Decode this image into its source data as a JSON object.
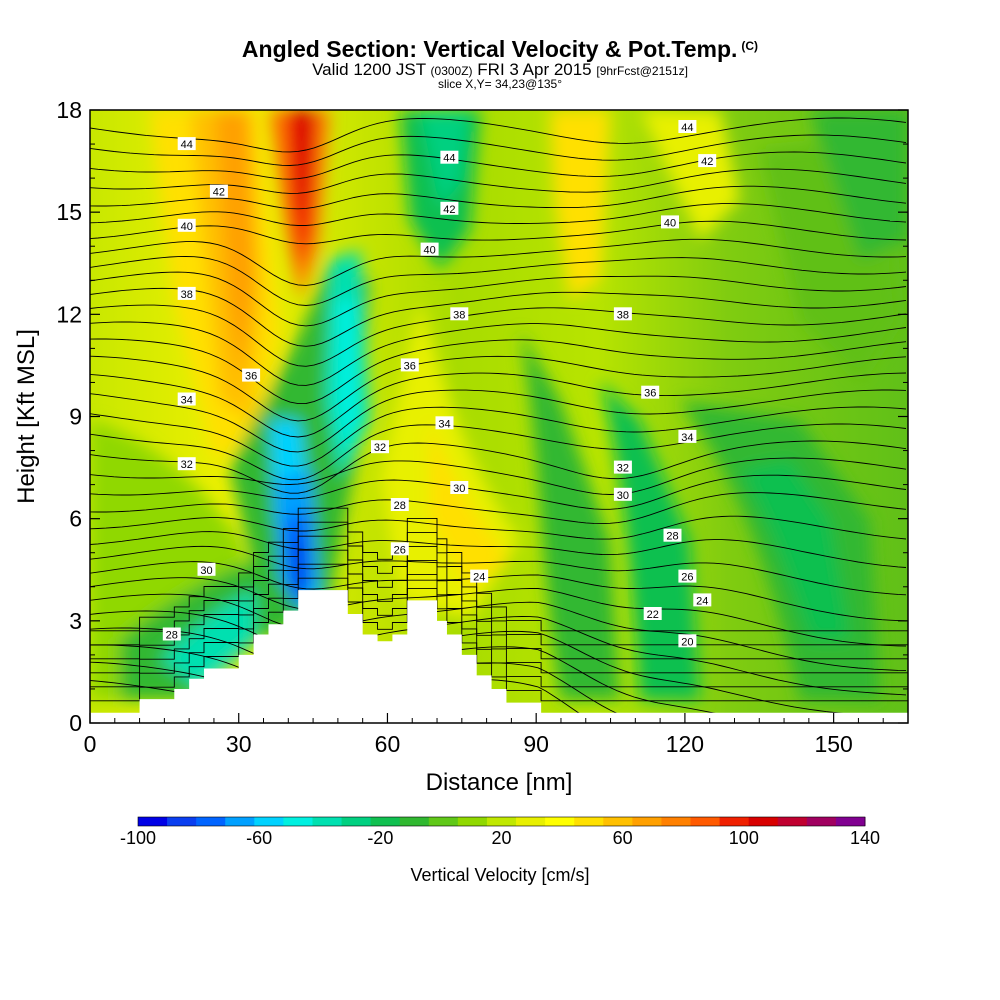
{
  "header": {
    "title": "Angled Section: Vertical Velocity & Pot.Temp.",
    "copyright": "(C)",
    "valid_prefix": "Valid 1200 JST",
    "valid_zulu": "(0300Z)",
    "valid_date": "FRI 3 Apr 2015",
    "forecast": "[9hrFcst@2151z]",
    "slice": "slice X,Y= 34,23@135°"
  },
  "chart_data": {
    "type": "heatmap",
    "title": "Angled Section: Vertical Velocity & Pot.Temp.",
    "xlabel": "Distance [nm]",
    "ylabel": "Height [Kft MSL]",
    "xlim": [
      0,
      165
    ],
    "ylim": [
      0,
      18
    ],
    "x_ticks": [
      0,
      30,
      60,
      90,
      120,
      150
    ],
    "y_ticks": [
      0,
      3,
      6,
      9,
      12,
      15,
      18
    ],
    "colorbar": {
      "label": "Vertical Velocity [cm/s]",
      "min": -100,
      "max": 140,
      "step": 10,
      "tick_labels": [
        "-100",
        "-60",
        "-20",
        "20",
        "60",
        "100",
        "140"
      ],
      "colors": [
        "#0000e6",
        "#0a3ef0",
        "#0064ff",
        "#00a0ff",
        "#00d2ff",
        "#00f0e0",
        "#00e0b0",
        "#00d080",
        "#10c050",
        "#30b830",
        "#60c818",
        "#90d800",
        "#c0e800",
        "#e8f000",
        "#ffff00",
        "#ffe000",
        "#ffc000",
        "#ffa000",
        "#ff8000",
        "#ff5a00",
        "#f02000",
        "#d80000",
        "#c00030",
        "#a00060",
        "#800090"
      ]
    },
    "vertical_velocity_features": [
      {
        "type": "updraft_column",
        "x_center": 43,
        "y_range": [
          10,
          18
        ],
        "peak_cm_s": 110
      },
      {
        "type": "downdraft_column",
        "x_center": 41,
        "y_range": [
          3.5,
          8
        ],
        "peak_cm_s": -100
      },
      {
        "type": "downdraft_column",
        "x_center": 52,
        "y_range": [
          4,
          14
        ],
        "peak_cm_s": -60
      },
      {
        "type": "updraft_band",
        "x_center": 30,
        "y_range": [
          7,
          18
        ],
        "peak_cm_s": 50
      },
      {
        "type": "updraft_band",
        "x_center": 97,
        "y_range": [
          12,
          18
        ],
        "peak_cm_s": 30
      },
      {
        "type": "downdraft_band",
        "x_center": 68,
        "y_range": [
          12,
          18
        ],
        "peak_cm_s": -40
      },
      {
        "type": "downdraft_region",
        "x_center": 125,
        "y_range": [
          2,
          9
        ],
        "peak_cm_s": -20
      }
    ],
    "terrain_nm_kft": [
      [
        0,
        0.3
      ],
      [
        10,
        0.3
      ],
      [
        10,
        0.7
      ],
      [
        17,
        0.7
      ],
      [
        17,
        1.0
      ],
      [
        20,
        1.0
      ],
      [
        20,
        1.3
      ],
      [
        23,
        1.3
      ],
      [
        23,
        1.6
      ],
      [
        30,
        1.6
      ],
      [
        30,
        2.0
      ],
      [
        33,
        2.0
      ],
      [
        33,
        2.6
      ],
      [
        36,
        2.6
      ],
      [
        36,
        2.9
      ],
      [
        39,
        2.9
      ],
      [
        39,
        3.3
      ],
      [
        42,
        3.3
      ],
      [
        42,
        3.9
      ],
      [
        52,
        3.9
      ],
      [
        52,
        3.2
      ],
      [
        55,
        3.2
      ],
      [
        55,
        2.6
      ],
      [
        58,
        2.6
      ],
      [
        58,
        2.4
      ],
      [
        61,
        2.4
      ],
      [
        61,
        2.6
      ],
      [
        64,
        2.6
      ],
      [
        64,
        3.6
      ],
      [
        70,
        3.6
      ],
      [
        70,
        3.0
      ],
      [
        72,
        3.0
      ],
      [
        72,
        2.6
      ],
      [
        75,
        2.6
      ],
      [
        75,
        2.0
      ],
      [
        78,
        2.0
      ],
      [
        78,
        1.4
      ],
      [
        81,
        1.4
      ],
      [
        81,
        1.0
      ],
      [
        84,
        1.0
      ],
      [
        84,
        0.6
      ],
      [
        91,
        0.6
      ],
      [
        91,
        0.3
      ],
      [
        165,
        0.3
      ]
    ],
    "contour_labels": [
      {
        "text": "44",
        "x": 19.5,
        "y": 17.0
      },
      {
        "text": "42",
        "x": 26,
        "y": 15.6
      },
      {
        "text": "40",
        "x": 19.5,
        "y": 14.6
      },
      {
        "text": "38",
        "x": 19.5,
        "y": 12.6
      },
      {
        "text": "36",
        "x": 32.5,
        "y": 10.2
      },
      {
        "text": "34",
        "x": 19.5,
        "y": 9.5
      },
      {
        "text": "32",
        "x": 19.5,
        "y": 7.6
      },
      {
        "text": "30",
        "x": 23.5,
        "y": 4.5
      },
      {
        "text": "28",
        "x": 16.5,
        "y": 2.6
      },
      {
        "text": "44",
        "x": 72.5,
        "y": 16.6
      },
      {
        "text": "42",
        "x": 72.5,
        "y": 15.1
      },
      {
        "text": "40",
        "x": 68.5,
        "y": 13.9
      },
      {
        "text": "38",
        "x": 74.5,
        "y": 12.0
      },
      {
        "text": "36",
        "x": 64.5,
        "y": 10.5
      },
      {
        "text": "34",
        "x": 71.5,
        "y": 8.8
      },
      {
        "text": "32",
        "x": 58.5,
        "y": 8.1
      },
      {
        "text": "30",
        "x": 74.5,
        "y": 6.9
      },
      {
        "text": "28",
        "x": 62.5,
        "y": 6.4
      },
      {
        "text": "26",
        "x": 62.5,
        "y": 5.1
      },
      {
        "text": "24",
        "x": 78.5,
        "y": 4.3
      },
      {
        "text": "44",
        "x": 120.5,
        "y": 17.5
      },
      {
        "text": "42",
        "x": 124.5,
        "y": 16.5
      },
      {
        "text": "40",
        "x": 117,
        "y": 14.7
      },
      {
        "text": "38",
        "x": 107.5,
        "y": 12.0
      },
      {
        "text": "36",
        "x": 113,
        "y": 9.7
      },
      {
        "text": "34",
        "x": 120.5,
        "y": 8.4
      },
      {
        "text": "32",
        "x": 107.5,
        "y": 7.5
      },
      {
        "text": "30",
        "x": 107.5,
        "y": 6.7
      },
      {
        "text": "28",
        "x": 117.5,
        "y": 5.5
      },
      {
        "text": "26",
        "x": 120.5,
        "y": 4.3
      },
      {
        "text": "24",
        "x": 123.5,
        "y": 3.6
      },
      {
        "text": "22",
        "x": 113.5,
        "y": 3.2
      },
      {
        "text": "20",
        "x": 120.5,
        "y": 2.4
      }
    ]
  }
}
